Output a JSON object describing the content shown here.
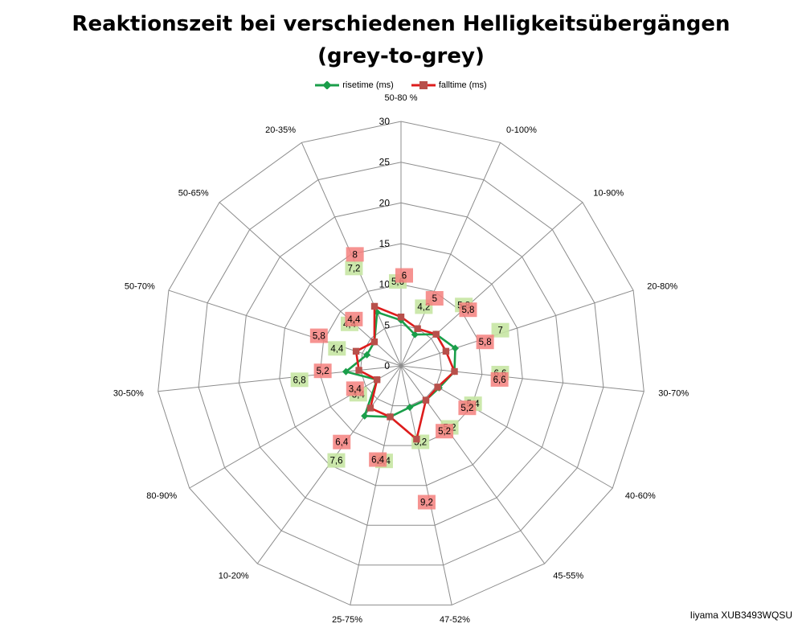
{
  "chart_data": {
    "type": "radar",
    "title_line1": "Reaktionszeit bei verschiedenen Helligkeitsübergängen",
    "title_line2": "(grey-to-grey)",
    "categories": [
      "50-80 %",
      "0-100%",
      "10-90%",
      "20-80%",
      "30-70%",
      "40-60%",
      "45-55%",
      "47-52%",
      "25-75%",
      "10-20%",
      "80-90%",
      "30-50%",
      "50-70%",
      "50-65%",
      "20-35%"
    ],
    "rlim": [
      0,
      30
    ],
    "ticks": [
      "0",
      "5",
      "10",
      "15",
      "20",
      "25",
      "30"
    ],
    "series": [
      {
        "name": "risetime (ms)",
        "color": "#1a9e4a",
        "marker": "diamond",
        "label_bg": "#c6e6a3",
        "values": [
          5.6,
          4.2,
          5.8,
          7,
          6.6,
          5.4,
          5.2,
          5.2,
          6.4,
          7.6,
          3.4,
          6.8,
          4.4,
          4.4,
          7.2
        ],
        "labels": [
          "5,6",
          "4,2",
          "5,8",
          "7",
          "6,6",
          "5,4",
          "5,2",
          "5,2",
          "6,4",
          "7,6",
          "3,4",
          "6,8",
          "4,4",
          "4,4",
          "7,2"
        ]
      },
      {
        "name": "falltime (ms)",
        "color": "#dd1c1c",
        "marker": "square",
        "label_bg": "#f4807e",
        "values": [
          6,
          5,
          5.8,
          5.8,
          6.6,
          5.2,
          5.2,
          9.2,
          6.4,
          6.4,
          3.4,
          5.2,
          5.8,
          4.4,
          8
        ],
        "labels": [
          "6",
          "5",
          "5,8",
          "5,8",
          "6,6",
          "5,2",
          "5,2",
          "9,2",
          "6,4",
          "6,4",
          "3,4",
          "5,2",
          "5,8",
          "4,4",
          "8"
        ]
      }
    ],
    "legend_position": "top",
    "grid": true
  },
  "footer_text": "Iiyama XUB3493WQSU"
}
